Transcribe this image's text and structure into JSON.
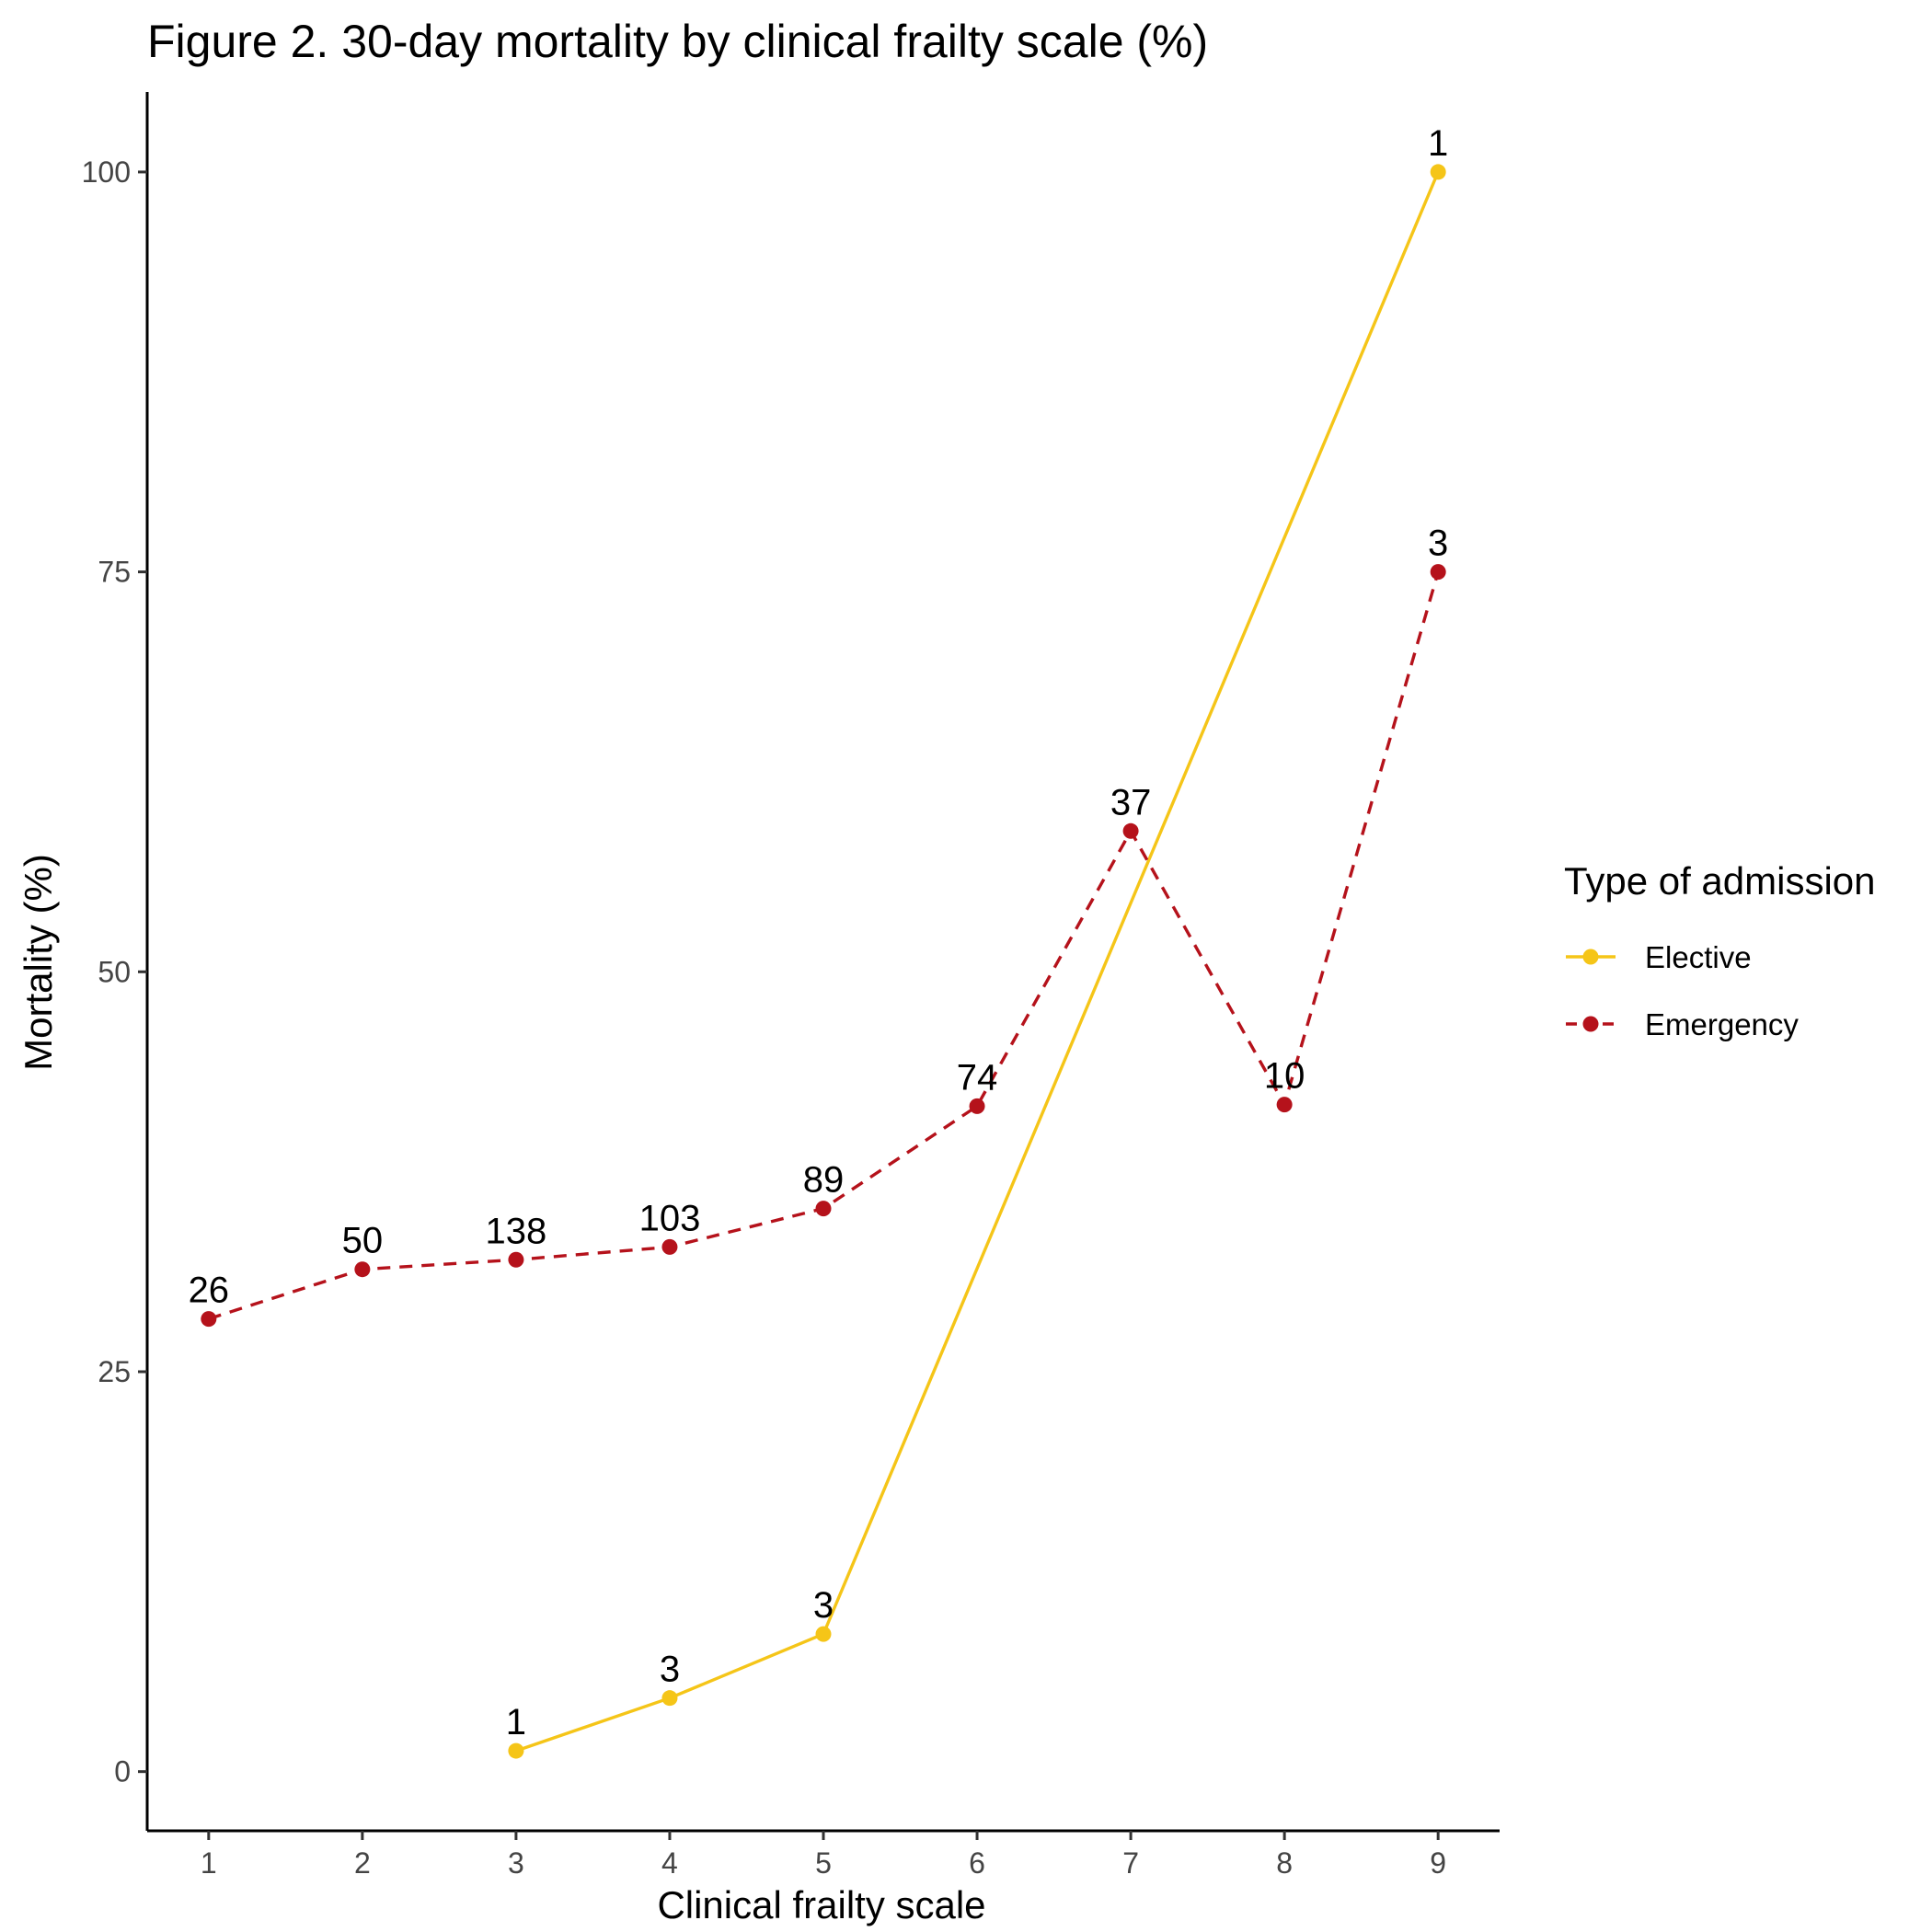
{
  "chart_data": {
    "type": "line",
    "title": "Figure 2. 30-day mortality by clinical frailty scale (%)",
    "xlabel": "Clinical frailty scale",
    "ylabel": "Mortality (%)",
    "xlim": [
      0.6,
      9.4
    ],
    "ylim": [
      -3.7,
      105
    ],
    "x_ticks": [
      1,
      2,
      3,
      4,
      5,
      6,
      7,
      8,
      9
    ],
    "y_ticks": [
      0,
      25,
      50,
      75,
      100
    ],
    "grid": false,
    "legend": {
      "title": "Type of admission",
      "position": "right"
    },
    "series": [
      {
        "name": "Elective",
        "color": "#F5C518",
        "line_style": "solid",
        "x": [
          3,
          4,
          5,
          9
        ],
        "values": [
          1.3,
          4.6,
          8.6,
          100
        ],
        "labels": [
          "1",
          "3",
          "3",
          "1"
        ]
      },
      {
        "name": "Emergency",
        "color": "#B5121B",
        "line_style": "dashed",
        "x": [
          1,
          2,
          3,
          4,
          5,
          6,
          7,
          8,
          9
        ],
        "values": [
          28.3,
          31.4,
          32.0,
          32.8,
          35.2,
          41.6,
          58.8,
          41.7,
          75.0
        ],
        "labels": [
          "26",
          "50",
          "138",
          "103",
          "89",
          "74",
          "37",
          "10",
          "3"
        ]
      }
    ]
  }
}
